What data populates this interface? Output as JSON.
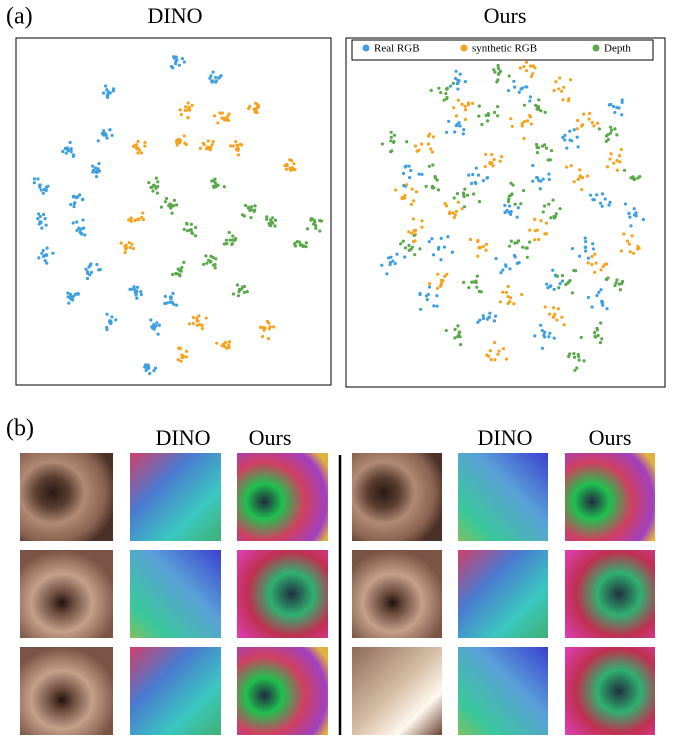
{
  "panel_a_label": "(a)",
  "chart_data": [
    {
      "type": "scatter",
      "title": "DINO",
      "xlim": [
        0,
        100
      ],
      "ylim": [
        0,
        100
      ],
      "series": [
        {
          "color": "#3e9fe0",
          "x": [
            50.8,
            62.9,
            29.8,
            16.5,
            27.9,
            7.6,
            18.4,
            26.0,
            7.6,
            20.3,
            9.5,
            24.1,
            17.8,
            29.8,
            38.1,
            43.2,
            49.5,
            41.9
          ],
          "y": [
            93.1,
            87.9,
            84.1,
            67.7,
            72.0,
            57.6,
            53.3,
            61.4,
            47.0,
            45.2,
            37.5,
            32.6,
            25.1,
            18.2,
            26.5,
            16.4,
            23.9,
            4.9
          ]
        },
        {
          "color": "#f5a31f",
          "x": [
            54.6,
            75.9,
            39.4,
            52.1,
            61.0,
            70.5,
            87.0,
            38.1,
            34.9,
            57.8,
            66.0,
            52.7,
            80.0,
            65.4
          ],
          "y": [
            79.3,
            78.7,
            68.3,
            70.6,
            68.3,
            67.7,
            62.5,
            48.1,
            39.5,
            18.2,
            11.5,
            8.6,
            15.9,
            76.9
          ]
        },
        {
          "color": "#5aa84a",
          "x": [
            43.8,
            63.5,
            55.2,
            67.9,
            80.6,
            90.2,
            71.1,
            52.1,
            61.6,
            94.9,
            48.9,
            74.3
          ],
          "y": [
            57.6,
            57.6,
            44.7,
            41.8,
            46.1,
            40.3,
            27.4,
            33.1,
            35.4,
            46.1,
            51.9,
            50.4
          ]
        }
      ]
    },
    {
      "type": "scatter",
      "title": "Ours",
      "xlim": [
        0,
        100
      ],
      "ylim": [
        0,
        100
      ],
      "legend": "top",
      "series": [
        {
          "name": "Real RGB",
          "color": "#3e9fe0",
          "x": [
            20,
            35,
            50,
            65,
            80,
            45,
            30,
            70,
            85,
            55,
            15,
            60,
            40,
            75,
            90,
            25,
            50,
            62,
            35,
            80
          ],
          "y": [
            60,
            75,
            50,
            30,
            55,
            20,
            40,
            70,
            80,
            85,
            35,
            60,
            60,
            40,
            50,
            25,
            35,
            15,
            88,
            25
          ]
        },
        {
          "name": "synthetic RGB",
          "color": "#f5a31f",
          "x": [
            18,
            30,
            45,
            60,
            72,
            85,
            38,
            52,
            68,
            25,
            55,
            42,
            78,
            88,
            33,
            48,
            65,
            58,
            22,
            75
          ],
          "y": [
            55,
            30,
            65,
            45,
            60,
            65,
            80,
            25,
            85,
            70,
            75,
            40,
            35,
            40,
            50,
            10,
            20,
            92,
            45,
            75
          ]
        },
        {
          "name": "Depth",
          "color": "#5aa84a",
          "x": [
            15,
            28,
            40,
            52,
            66,
            82,
            90,
            45,
            60,
            35,
            55,
            70,
            30,
            78,
            20,
            48,
            62,
            85,
            38,
            72
          ],
          "y": [
            70,
            60,
            30,
            55,
            50,
            72,
            60,
            78,
            80,
            15,
            40,
            30,
            85,
            15,
            40,
            90,
            68,
            30,
            55,
            8
          ]
        }
      ]
    }
  ],
  "panel_b": {
    "label": "(b)",
    "column_headers": [
      "DINO",
      "Ours",
      "DINO",
      "Ours"
    ]
  }
}
